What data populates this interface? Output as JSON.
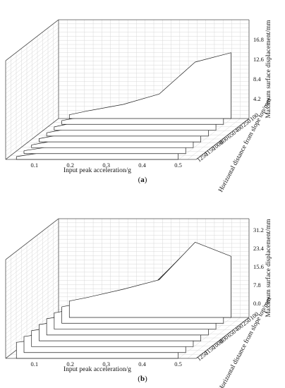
{
  "chart_data": [
    {
      "type": "line",
      "caption_letter": "a",
      "xlabel": "Input peak acceleration/g",
      "zlabel": "Maximum surface displacement/mm",
      "depth_label": "Horizontal distance from slope top/mm",
      "x_ticks": [
        "0.1",
        "0.2",
        "0.3",
        "0.4",
        "0.5"
      ],
      "z_ticks": [
        "4.2",
        "8.4",
        "12.6",
        "16.8"
      ],
      "depth_ticks": [
        "100",
        "250",
        "400",
        "650",
        "800",
        "1000",
        "1150",
        "1250"
      ],
      "x": [
        0.05,
        0.1,
        0.2,
        0.3,
        0.4,
        0.5
      ],
      "zlim": [
        0,
        21
      ],
      "series": [
        {
          "depth": "100",
          "values": [
            0.8,
            1.6,
            3.0,
            5.2,
            12.0,
            14.0
          ]
        },
        {
          "depth": "250",
          "values": [
            0.8,
            1.5,
            2.9,
            5.0,
            11.6,
            13.4
          ]
        },
        {
          "depth": "400",
          "values": [
            0.7,
            1.5,
            2.8,
            4.9,
            11.2,
            12.8
          ]
        },
        {
          "depth": "650",
          "values": [
            0.7,
            1.4,
            2.7,
            4.7,
            10.8,
            12.2
          ]
        },
        {
          "depth": "800",
          "values": [
            0.7,
            1.4,
            2.6,
            4.5,
            10.4,
            11.6
          ]
        },
        {
          "depth": "1000",
          "values": [
            0.6,
            1.3,
            2.5,
            4.3,
            10.0,
            11.0
          ]
        },
        {
          "depth": "1150",
          "values": [
            0.6,
            1.2,
            2.4,
            4.1,
            9.6,
            10.4
          ]
        },
        {
          "depth": "1250",
          "values": [
            0.6,
            1.2,
            2.3,
            3.9,
            9.2,
            9.8
          ]
        }
      ]
    },
    {
      "type": "line",
      "caption_letter": "b",
      "xlabel": "Input peak acceleration/g",
      "zlabel": "Maximum surface displacement/mm",
      "depth_label": "Horizontal distance from slope top/mm",
      "x_ticks": [
        "0.1",
        "0.2",
        "0.3",
        "0.4",
        "0.5"
      ],
      "z_ticks": [
        "0.0",
        "7.8",
        "15.6",
        "23.4",
        "31.2"
      ],
      "depth_ticks": [
        "100",
        "250",
        "400",
        "650",
        "800",
        "1000",
        "1150",
        "1250"
      ],
      "x": [
        0.05,
        0.1,
        0.2,
        0.3,
        0.4,
        0.5
      ],
      "zlim": [
        -6,
        36
      ],
      "series": [
        {
          "depth": "100",
          "values": [
            1.0,
            2.5,
            6.0,
            10.0,
            26.0,
            20.0
          ]
        },
        {
          "depth": "250",
          "values": [
            1.0,
            2.4,
            5.8,
            9.6,
            25.0,
            19.0
          ]
        },
        {
          "depth": "400",
          "values": [
            0.9,
            2.3,
            5.6,
            9.2,
            24.0,
            18.0
          ]
        },
        {
          "depth": "650",
          "values": [
            0.9,
            2.2,
            5.4,
            8.8,
            23.0,
            17.0
          ]
        },
        {
          "depth": "800",
          "values": [
            0.9,
            2.1,
            5.2,
            8.4,
            22.0,
            16.0
          ]
        },
        {
          "depth": "1000",
          "values": [
            0.8,
            2.0,
            5.0,
            8.0,
            21.0,
            15.0
          ]
        },
        {
          "depth": "1150",
          "values": [
            0.8,
            1.9,
            4.8,
            7.6,
            20.0,
            14.0
          ]
        },
        {
          "depth": "1250",
          "values": [
            0.8,
            1.8,
            4.6,
            7.2,
            19.0,
            13.0
          ]
        }
      ]
    }
  ]
}
